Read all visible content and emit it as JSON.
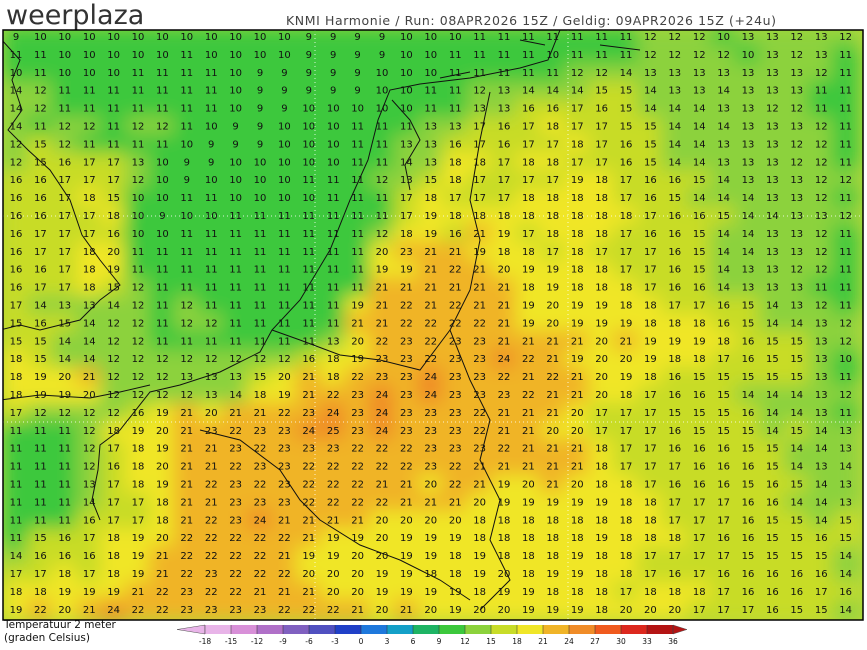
{
  "header": {
    "brand": "weerplaza",
    "info": "KNMI Harmonie / Run: 08APR2026 15Z / Geldig: 09APR2026 15Z (+24u)"
  },
  "map": {
    "rows": [
      [
        9,
        10,
        10,
        10,
        10,
        10,
        10,
        10,
        10,
        10,
        10,
        10,
        9,
        9,
        9,
        9,
        10,
        10,
        10,
        11,
        11,
        11,
        11,
        11,
        11,
        11,
        12,
        12,
        12,
        10,
        13,
        13,
        12,
        13,
        12
      ],
      [
        11,
        11,
        10,
        10,
        10,
        10,
        10,
        11,
        10,
        10,
        10,
        10,
        9,
        9,
        9,
        9,
        10,
        10,
        11,
        11,
        11,
        11,
        10,
        11,
        11,
        11,
        12,
        12,
        12,
        12,
        10,
        13,
        12,
        13,
        11
      ],
      [
        10,
        11,
        10,
        10,
        10,
        11,
        11,
        11,
        11,
        10,
        9,
        9,
        9,
        9,
        9,
        10,
        10,
        10,
        11,
        11,
        11,
        11,
        11,
        12,
        12,
        14,
        13,
        13,
        13,
        13,
        13,
        13,
        13,
        12,
        11
      ],
      [
        14,
        12,
        11,
        11,
        11,
        11,
        11,
        11,
        11,
        10,
        9,
        9,
        9,
        9,
        9,
        10,
        10,
        11,
        11,
        12,
        13,
        14,
        14,
        14,
        15,
        15,
        14,
        13,
        13,
        14,
        13,
        13,
        13,
        11,
        11
      ],
      [
        14,
        12,
        11,
        11,
        11,
        11,
        11,
        11,
        11,
        10,
        9,
        9,
        10,
        10,
        10,
        10,
        10,
        11,
        11,
        13,
        13,
        16,
        16,
        17,
        16,
        15,
        14,
        14,
        14,
        13,
        13,
        12,
        12,
        11,
        11
      ],
      [
        14,
        11,
        12,
        12,
        11,
        12,
        12,
        11,
        10,
        9,
        9,
        10,
        10,
        10,
        11,
        11,
        11,
        13,
        13,
        17,
        16,
        17,
        18,
        17,
        17,
        15,
        15,
        14,
        14,
        14,
        13,
        13,
        13,
        12,
        11
      ],
      [
        12,
        15,
        12,
        11,
        11,
        11,
        11,
        10,
        9,
        9,
        9,
        10,
        10,
        10,
        11,
        11,
        13,
        13,
        16,
        17,
        16,
        17,
        17,
        18,
        17,
        16,
        15,
        14,
        14,
        13,
        13,
        13,
        12,
        12,
        11
      ],
      [
        12,
        15,
        16,
        17,
        17,
        13,
        10,
        9,
        9,
        10,
        10,
        10,
        10,
        10,
        11,
        11,
        14,
        13,
        18,
        18,
        17,
        18,
        18,
        17,
        17,
        16,
        15,
        14,
        14,
        13,
        13,
        13,
        12,
        12,
        11
      ],
      [
        16,
        16,
        17,
        17,
        17,
        12,
        10,
        9,
        10,
        10,
        10,
        10,
        11,
        11,
        11,
        12,
        13,
        15,
        18,
        17,
        17,
        17,
        17,
        19,
        18,
        17,
        16,
        16,
        15,
        14,
        13,
        13,
        13,
        12,
        12
      ],
      [
        16,
        16,
        17,
        18,
        15,
        10,
        10,
        11,
        11,
        10,
        10,
        10,
        10,
        11,
        11,
        11,
        17,
        18,
        17,
        17,
        17,
        18,
        18,
        18,
        18,
        17,
        16,
        15,
        14,
        14,
        14,
        13,
        13,
        12,
        11
      ],
      [
        16,
        16,
        17,
        17,
        18,
        10,
        9,
        10,
        10,
        11,
        11,
        11,
        11,
        11,
        11,
        11,
        17,
        19,
        18,
        18,
        18,
        18,
        18,
        18,
        18,
        18,
        17,
        16,
        16,
        15,
        14,
        14,
        13,
        13,
        12
      ],
      [
        16,
        17,
        17,
        17,
        16,
        10,
        10,
        11,
        11,
        11,
        11,
        11,
        11,
        11,
        11,
        12,
        18,
        19,
        16,
        21,
        19,
        17,
        18,
        18,
        18,
        17,
        16,
        16,
        15,
        14,
        14,
        13,
        13,
        12,
        11
      ],
      [
        16,
        17,
        17,
        18,
        20,
        11,
        11,
        11,
        11,
        11,
        11,
        11,
        11,
        11,
        11,
        20,
        23,
        21,
        21,
        19,
        18,
        18,
        17,
        18,
        17,
        17,
        17,
        16,
        15,
        14,
        14,
        13,
        13,
        12,
        11
      ],
      [
        16,
        16,
        17,
        18,
        19,
        11,
        11,
        11,
        11,
        11,
        11,
        11,
        11,
        11,
        11,
        19,
        19,
        21,
        22,
        21,
        20,
        19,
        19,
        18,
        18,
        17,
        17,
        16,
        15,
        14,
        13,
        13,
        12,
        12,
        11
      ],
      [
        16,
        17,
        17,
        18,
        15,
        12,
        11,
        11,
        11,
        11,
        11,
        11,
        11,
        11,
        11,
        21,
        21,
        21,
        21,
        21,
        21,
        18,
        19,
        18,
        18,
        18,
        17,
        16,
        16,
        14,
        13,
        13,
        13,
        11,
        11
      ],
      [
        17,
        14,
        13,
        13,
        14,
        12,
        11,
        12,
        11,
        11,
        11,
        11,
        11,
        11,
        19,
        21,
        22,
        21,
        22,
        21,
        21,
        19,
        20,
        19,
        19,
        18,
        18,
        17,
        17,
        16,
        15,
        14,
        13,
        12,
        11
      ],
      [
        15,
        16,
        15,
        14,
        12,
        12,
        11,
        12,
        12,
        11,
        11,
        11,
        11,
        11,
        21,
        21,
        22,
        22,
        22,
        22,
        21,
        19,
        20,
        19,
        19,
        19,
        18,
        18,
        18,
        16,
        15,
        14,
        14,
        13,
        12
      ],
      [
        15,
        15,
        14,
        14,
        12,
        12,
        11,
        11,
        11,
        11,
        11,
        11,
        11,
        13,
        20,
        22,
        23,
        22,
        23,
        23,
        21,
        21,
        21,
        21,
        20,
        21,
        19,
        19,
        19,
        18,
        16,
        15,
        15,
        13,
        12
      ],
      [
        18,
        15,
        14,
        14,
        12,
        12,
        12,
        12,
        12,
        12,
        12,
        12,
        16,
        18,
        19,
        23,
        23,
        22,
        23,
        23,
        24,
        22,
        21,
        19,
        20,
        20,
        19,
        18,
        18,
        17,
        16,
        15,
        15,
        13,
        10
      ],
      [
        18,
        19,
        20,
        21,
        12,
        12,
        12,
        13,
        13,
        13,
        15,
        20,
        21,
        18,
        22,
        23,
        23,
        24,
        23,
        23,
        22,
        21,
        22,
        21,
        20,
        19,
        18,
        16,
        15,
        15,
        15,
        15,
        15,
        13,
        11
      ],
      [
        18,
        19,
        19,
        20,
        12,
        12,
        12,
        12,
        13,
        14,
        18,
        19,
        21,
        22,
        23,
        24,
        23,
        24,
        23,
        23,
        23,
        22,
        21,
        21,
        20,
        18,
        17,
        16,
        16,
        15,
        14,
        14,
        14,
        13,
        12
      ],
      [
        17,
        12,
        12,
        12,
        12,
        16,
        19,
        21,
        20,
        21,
        21,
        22,
        23,
        24,
        23,
        24,
        23,
        23,
        23,
        22,
        21,
        21,
        21,
        20,
        17,
        17,
        17,
        15,
        15,
        15,
        16,
        14,
        14,
        13,
        11
      ],
      [
        11,
        11,
        11,
        12,
        18,
        19,
        20,
        21,
        23,
        22,
        23,
        23,
        24,
        25,
        23,
        24,
        23,
        23,
        23,
        22,
        21,
        21,
        20,
        20,
        17,
        17,
        17,
        16,
        15,
        15,
        15,
        14,
        15,
        14,
        13
      ],
      [
        11,
        11,
        11,
        12,
        17,
        18,
        19,
        21,
        21,
        23,
        22,
        23,
        23,
        23,
        22,
        22,
        22,
        23,
        23,
        23,
        22,
        21,
        21,
        21,
        18,
        17,
        17,
        16,
        16,
        16,
        15,
        15,
        14,
        14,
        13
      ],
      [
        11,
        11,
        11,
        12,
        16,
        18,
        20,
        21,
        21,
        22,
        23,
        23,
        22,
        22,
        22,
        22,
        22,
        23,
        22,
        21,
        21,
        21,
        21,
        21,
        18,
        17,
        17,
        17,
        16,
        16,
        16,
        15,
        14,
        13,
        14
      ],
      [
        11,
        11,
        11,
        13,
        17,
        18,
        19,
        21,
        22,
        23,
        22,
        23,
        22,
        22,
        22,
        21,
        21,
        20,
        22,
        21,
        19,
        20,
        21,
        20,
        18,
        18,
        17,
        16,
        16,
        16,
        15,
        16,
        15,
        14,
        13
      ],
      [
        11,
        11,
        11,
        14,
        17,
        17,
        18,
        21,
        21,
        23,
        23,
        23,
        22,
        22,
        22,
        22,
        21,
        21,
        21,
        20,
        19,
        19,
        19,
        19,
        19,
        18,
        18,
        17,
        17,
        17,
        16,
        16,
        14,
        14,
        13
      ],
      [
        11,
        11,
        11,
        16,
        17,
        17,
        18,
        21,
        22,
        23,
        24,
        21,
        21,
        21,
        21,
        20,
        20,
        20,
        20,
        18,
        18,
        18,
        18,
        18,
        18,
        18,
        18,
        17,
        17,
        17,
        16,
        15,
        15,
        14,
        15
      ],
      [
        11,
        15,
        16,
        17,
        18,
        19,
        20,
        22,
        22,
        22,
        22,
        22,
        21,
        19,
        19,
        20,
        19,
        19,
        19,
        18,
        18,
        18,
        18,
        18,
        19,
        18,
        18,
        18,
        17,
        16,
        16,
        15,
        15,
        16,
        15
      ],
      [
        14,
        16,
        16,
        16,
        18,
        19,
        21,
        22,
        22,
        22,
        22,
        21,
        19,
        19,
        20,
        20,
        19,
        19,
        18,
        19,
        18,
        18,
        18,
        19,
        18,
        18,
        17,
        17,
        17,
        17,
        15,
        15,
        15,
        15,
        14
      ],
      [
        17,
        17,
        18,
        17,
        18,
        19,
        21,
        22,
        23,
        22,
        22,
        22,
        20,
        20,
        20,
        19,
        19,
        18,
        18,
        19,
        20,
        18,
        19,
        19,
        18,
        18,
        17,
        16,
        17,
        16,
        16,
        16,
        16,
        16,
        14
      ],
      [
        18,
        18,
        19,
        19,
        19,
        21,
        22,
        23,
        22,
        22,
        21,
        21,
        21,
        20,
        20,
        19,
        19,
        19,
        19,
        18,
        19,
        19,
        18,
        18,
        18,
        17,
        18,
        18,
        18,
        17,
        16,
        16,
        16,
        17,
        16
      ],
      [
        19,
        22,
        20,
        21,
        24,
        22,
        22,
        23,
        23,
        23,
        23,
        22,
        22,
        22,
        21,
        20,
        21,
        20,
        19,
        20,
        20,
        19,
        19,
        19,
        18,
        20,
        20,
        20,
        17,
        17,
        17,
        16,
        15,
        15,
        14
      ]
    ]
  },
  "legend": {
    "label": [
      "Temperatuur 2 meter",
      "(graden Celsius)"
    ],
    "ticks": [
      -18,
      -15,
      -12,
      -9,
      -6,
      -3,
      0,
      3,
      6,
      9,
      12,
      15,
      18,
      21,
      24,
      27,
      30,
      33,
      36
    ],
    "colors": [
      "#e8b4e8",
      "#d890d8",
      "#b070c8",
      "#8060c0",
      "#5050c0",
      "#2040c8",
      "#1e78dc",
      "#14a0c8",
      "#1eb464",
      "#3cc83c",
      "#8cd23c",
      "#c8dc28",
      "#f0e628",
      "#f0b428",
      "#f08c28",
      "#f05a1e",
      "#dc281e",
      "#b41414"
    ]
  }
}
